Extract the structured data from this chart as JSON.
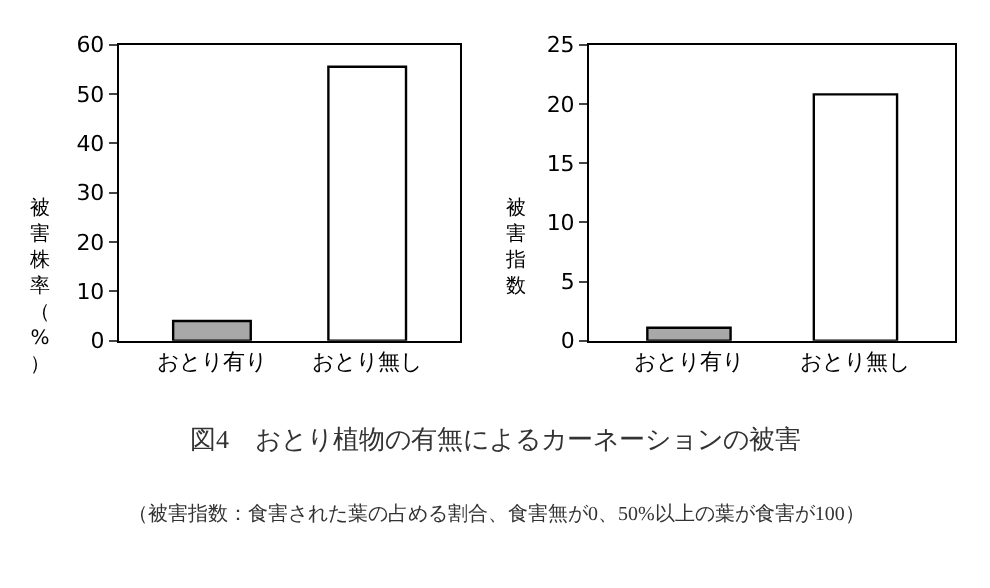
{
  "chart_data": [
    {
      "type": "bar",
      "ylabel": "被害株率（%）",
      "categories": [
        "おとり有り",
        "おとり無し"
      ],
      "values": [
        4,
        55.5
      ],
      "colors": [
        "#a8a8a8",
        "#ffffff"
      ],
      "ylim": [
        0,
        60
      ],
      "yticks": [
        0,
        10,
        20,
        30,
        40,
        50,
        60
      ]
    },
    {
      "type": "bar",
      "ylabel": "被害指数",
      "categories": [
        "おとり有り",
        "おとり無し"
      ],
      "values": [
        1.1,
        20.8
      ],
      "colors": [
        "#a8a8a8",
        "#ffffff"
      ],
      "ylim": [
        0,
        25
      ],
      "yticks": [
        0,
        5,
        10,
        15,
        20,
        25
      ]
    },
    {
      "type": "other",
      "title": "図4　おとり植物の有無によるカーネーションの被害",
      "annotations": [
        "（被害指数：食害された葉の占める割合、食害無が0、50%以上の葉が食害が100）"
      ]
    }
  ]
}
